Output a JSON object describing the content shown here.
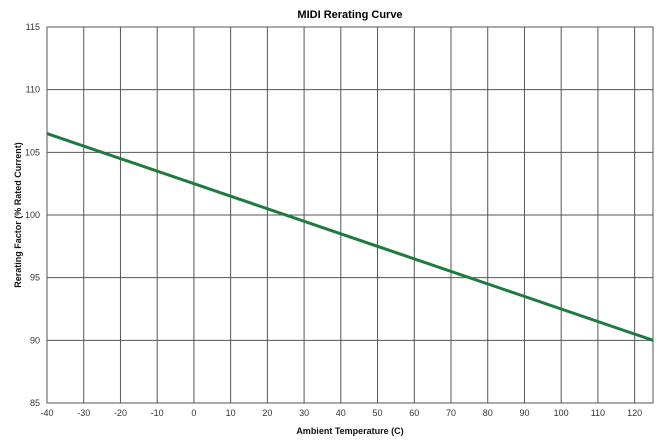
{
  "chart_data": {
    "type": "line",
    "title": "MIDI Rerating Curve",
    "xlabel": "Ambient Temperature (C)",
    "ylabel": "Rerating Factor (% Rated Current)",
    "xlim": [
      -40,
      125
    ],
    "ylim": [
      85,
      115
    ],
    "x_ticks": [
      -40,
      -30,
      -20,
      -10,
      0,
      10,
      20,
      30,
      40,
      50,
      60,
      70,
      80,
      90,
      100,
      110,
      120
    ],
    "y_ticks": [
      85,
      90,
      95,
      100,
      105,
      110,
      115
    ],
    "grid": true,
    "legend": "none",
    "series": [
      {
        "color": "#1f7a3f",
        "x": [
          -40,
          125
        ],
        "y": [
          106.5,
          90.0
        ]
      }
    ]
  }
}
